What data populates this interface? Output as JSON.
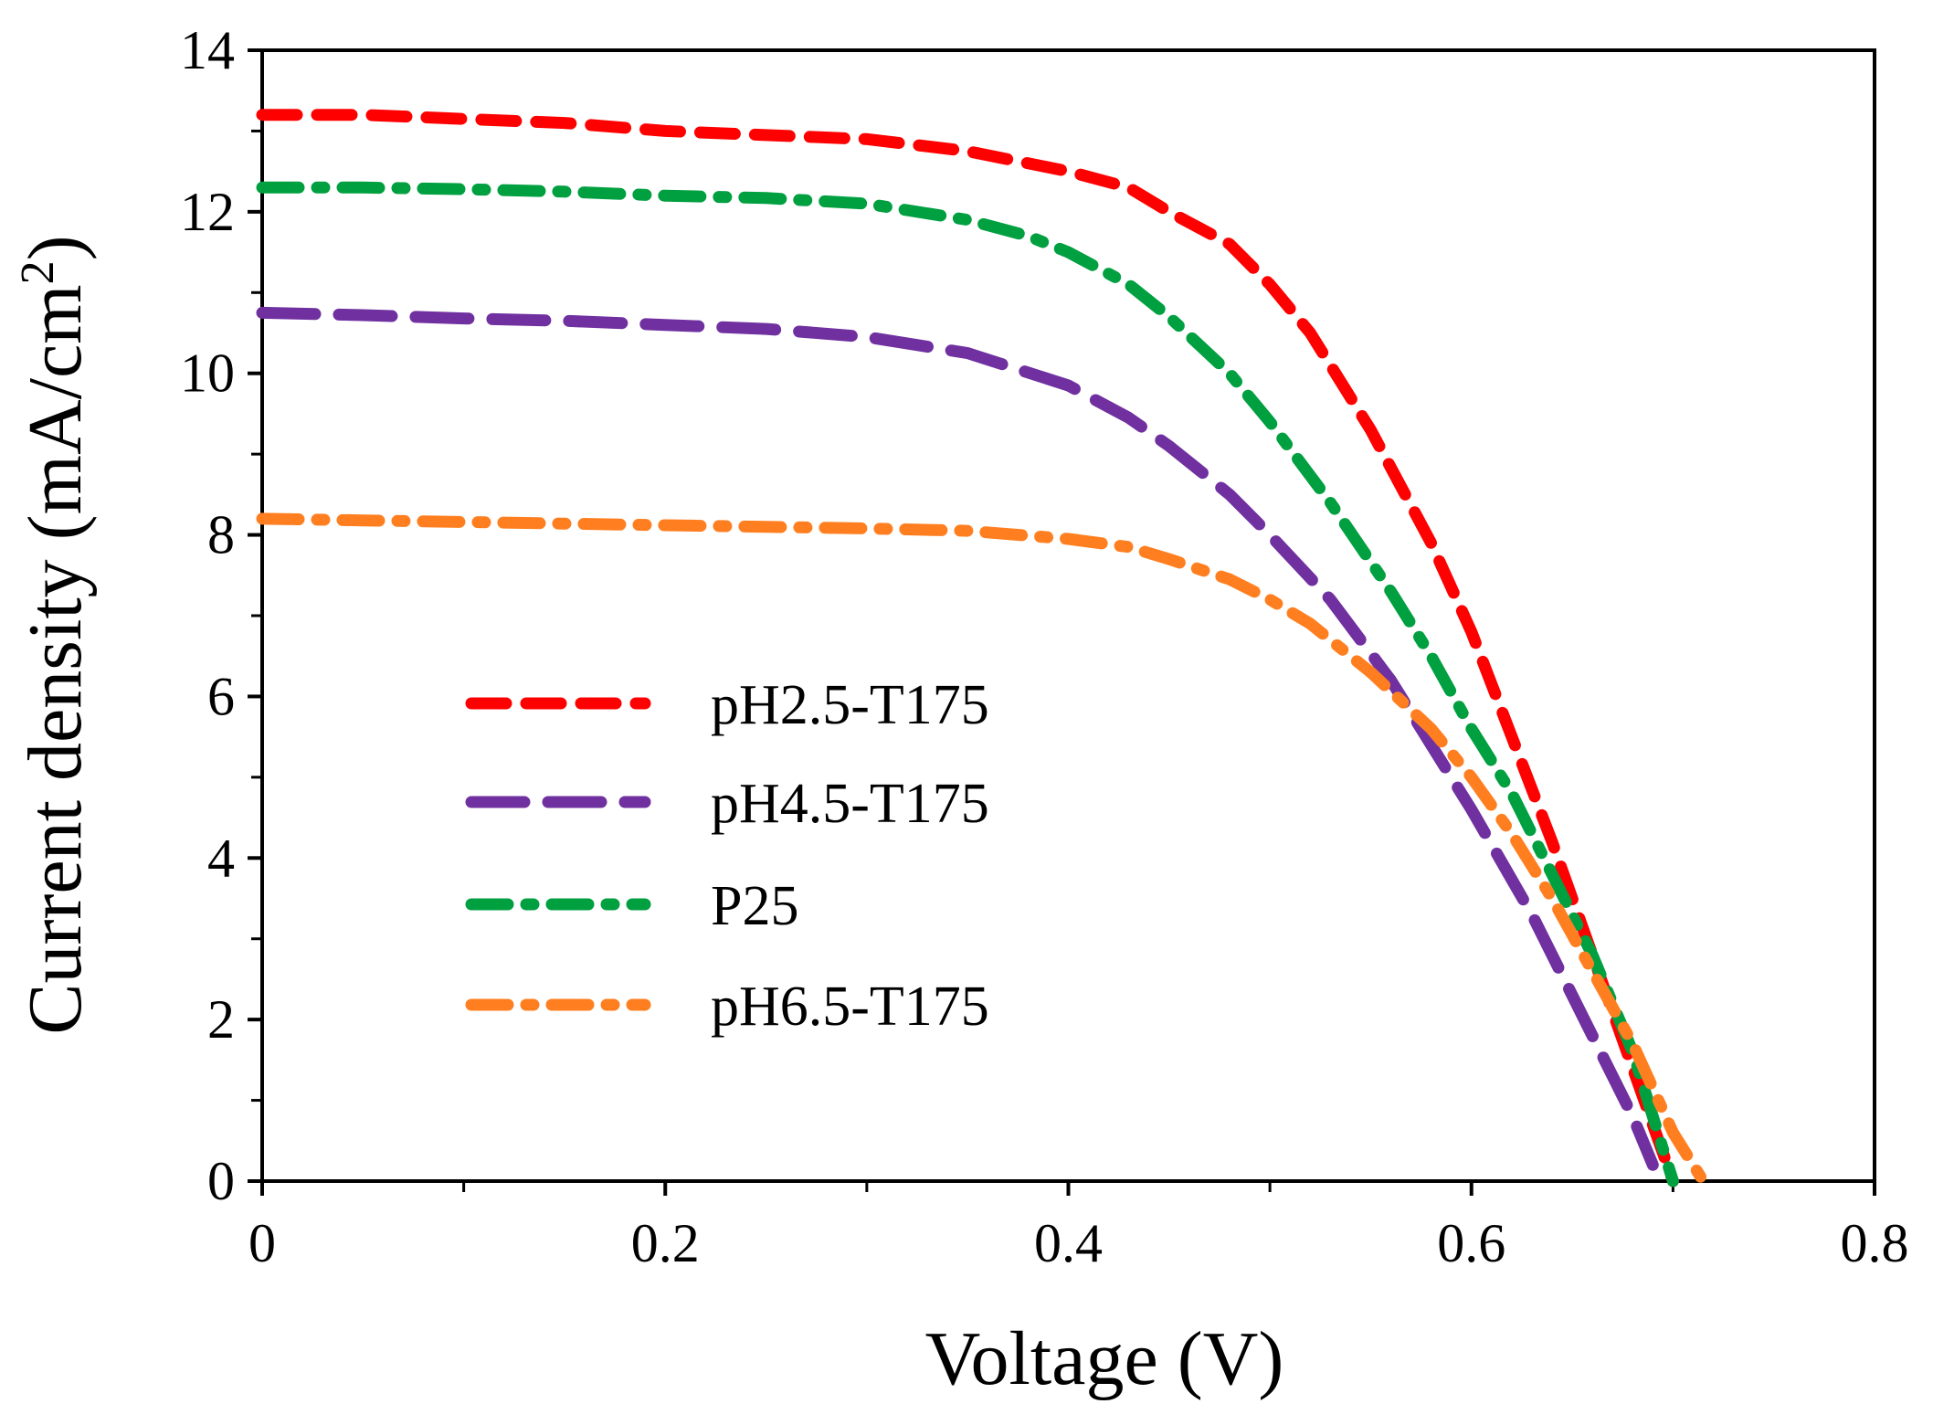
{
  "chart_data": {
    "type": "line",
    "title": "",
    "xlabel": "Voltage (V)",
    "ylabel": "Current density (mA/cm²)",
    "ylabel_main": "Current density (mA/cm",
    "ylabel_sup": "2",
    "ylabel_end": ")",
    "xlim": [
      0,
      0.8
    ],
    "ylim": [
      0,
      14
    ],
    "xticks": [
      0,
      0.2,
      0.4,
      0.6,
      0.8
    ],
    "xtick_labels": [
      "0",
      "0.2",
      "0.4",
      "0.6",
      "0.8"
    ],
    "yticks": [
      0,
      2,
      4,
      6,
      8,
      10,
      12,
      14
    ],
    "ytick_labels": [
      "0",
      "2",
      "4",
      "6",
      "8",
      "10",
      "12",
      "14"
    ],
    "grid": false,
    "legend_position": "center-left",
    "series": [
      {
        "name": "pH2.5-T175",
        "color": "#ff0000",
        "dash": "dash",
        "x": [
          0,
          0.05,
          0.1,
          0.15,
          0.2,
          0.25,
          0.3,
          0.35,
          0.4,
          0.43,
          0.45,
          0.48,
          0.5,
          0.52,
          0.55,
          0.58,
          0.6,
          0.62,
          0.64,
          0.66,
          0.68,
          0.69,
          0.7
        ],
        "y": [
          13.2,
          13.2,
          13.15,
          13.1,
          13.0,
          12.95,
          12.9,
          12.75,
          12.5,
          12.3,
          12.0,
          11.6,
          11.1,
          10.5,
          9.3,
          7.9,
          6.8,
          5.5,
          4.2,
          2.8,
          1.4,
          0.7,
          0
        ]
      },
      {
        "name": "pH4.5-T175",
        "color": "#7030a0",
        "dash": "longdash",
        "x": [
          0,
          0.05,
          0.1,
          0.15,
          0.2,
          0.25,
          0.3,
          0.35,
          0.4,
          0.43,
          0.45,
          0.48,
          0.5,
          0.53,
          0.56,
          0.6,
          0.63,
          0.66,
          0.68,
          0.69
        ],
        "y": [
          10.75,
          10.72,
          10.68,
          10.65,
          10.6,
          10.55,
          10.45,
          10.25,
          9.85,
          9.45,
          9.1,
          8.5,
          8.0,
          7.2,
          6.2,
          4.6,
          3.3,
          1.8,
          0.8,
          0.2
        ]
      },
      {
        "name": "P25",
        "color": "#00a040",
        "dash": "dashdot",
        "x": [
          0,
          0.05,
          0.1,
          0.15,
          0.2,
          0.25,
          0.3,
          0.35,
          0.38,
          0.4,
          0.43,
          0.45,
          0.48,
          0.5,
          0.53,
          0.56,
          0.58,
          0.6,
          0.62,
          0.64,
          0.66,
          0.68,
          0.69,
          0.7
        ],
        "y": [
          12.3,
          12.3,
          12.28,
          12.25,
          12.2,
          12.17,
          12.1,
          11.9,
          11.7,
          11.5,
          11.1,
          10.7,
          10.0,
          9.4,
          8.4,
          7.3,
          6.5,
          5.6,
          4.8,
          3.8,
          2.8,
          1.6,
          0.8,
          0
        ]
      },
      {
        "name": "pH6.5-T175",
        "color": "#ff7f20",
        "dash": "dashdot",
        "x": [
          0,
          0.05,
          0.1,
          0.15,
          0.2,
          0.25,
          0.3,
          0.35,
          0.4,
          0.43,
          0.45,
          0.48,
          0.5,
          0.52,
          0.55,
          0.58,
          0.6,
          0.62,
          0.64,
          0.66,
          0.68,
          0.7,
          0.715
        ],
        "y": [
          8.2,
          8.18,
          8.16,
          8.14,
          8.12,
          8.1,
          8.08,
          8.05,
          7.95,
          7.85,
          7.7,
          7.45,
          7.2,
          6.9,
          6.3,
          5.6,
          5.0,
          4.3,
          3.5,
          2.6,
          1.7,
          0.6,
          0
        ]
      }
    ]
  }
}
